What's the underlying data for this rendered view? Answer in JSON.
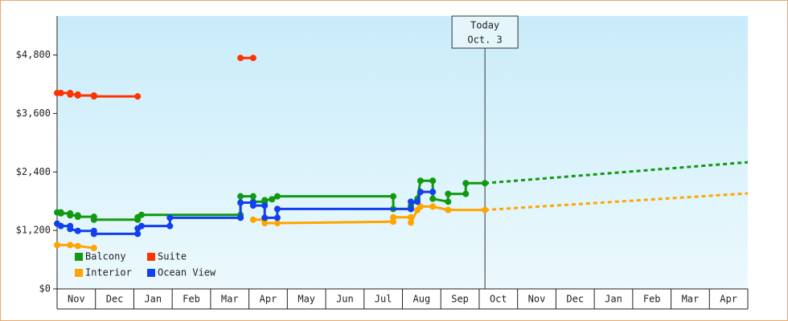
{
  "chart_data": {
    "type": "line",
    "step": true,
    "legend": "lower left",
    "xlim": [
      0,
      18
    ],
    "xticks": [
      {
        "value": 0.5,
        "label": "Nov"
      },
      {
        "value": 1.5,
        "label": "Dec"
      },
      {
        "value": 2.5,
        "label": "Jan"
      },
      {
        "value": 3.5,
        "label": "Feb"
      },
      {
        "value": 4.5,
        "label": "Mar"
      },
      {
        "value": 5.5,
        "label": "Apr"
      },
      {
        "value": 6.5,
        "label": "May"
      },
      {
        "value": 7.5,
        "label": "Jun"
      },
      {
        "value": 8.5,
        "label": "Jul"
      },
      {
        "value": 9.5,
        "label": "Aug"
      },
      {
        "value": 10.5,
        "label": "Sep"
      },
      {
        "value": 11.5,
        "label": "Oct"
      },
      {
        "value": 12.5,
        "label": "Nov"
      },
      {
        "value": 13.5,
        "label": "Dec"
      },
      {
        "value": 14.5,
        "label": "Jan"
      },
      {
        "value": 15.5,
        "label": "Feb"
      },
      {
        "value": 16.5,
        "label": "Mar"
      },
      {
        "value": 17.5,
        "label": "Apr"
      }
    ],
    "ylim": [
      0,
      5600
    ],
    "yticks": [
      {
        "value": 0,
        "label": "$0"
      },
      {
        "value": 1200,
        "label": "$1,200"
      },
      {
        "value": 2400,
        "label": "$2,400"
      },
      {
        "value": 3600,
        "label": "$3,600"
      },
      {
        "value": 4800,
        "label": "$4,800"
      }
    ],
    "annotation": {
      "x": 11.15,
      "lines": [
        "Today",
        "Oct. 3"
      ]
    },
    "series": [
      {
        "name": "Balcony",
        "color": "#119911",
        "x": [
          0,
          0.1,
          0.1,
          0.34,
          0.34,
          0.54,
          0.54,
          0.96,
          0.96,
          2.1,
          2.1,
          2.2,
          4.78,
          4.78,
          5.11,
          5.11,
          5.41,
          5.41,
          5.6,
          5.74,
          8.76,
          8.76,
          9.22,
          9.22,
          9.39,
          9.47,
          9.79,
          9.79,
          10.19,
          10.19,
          10.65,
          10.65,
          11.15
        ],
        "values": [
          1570,
          1570,
          1550,
          1550,
          1510,
          1510,
          1480,
          1480,
          1420,
          1420,
          1470,
          1520,
          1520,
          1900,
          1900,
          1790,
          1790,
          1820,
          1840,
          1900,
          1900,
          1640,
          1640,
          1700,
          1850,
          2220,
          2220,
          1850,
          1790,
          1950,
          1950,
          2170,
          2170
        ]
      },
      {
        "name": "Suite",
        "color": "#ff3300",
        "x": [
          0,
          0.1,
          0.34,
          0.34,
          0.54,
          0.54,
          0.96,
          0.96,
          2.1,
          3.5,
          4.78,
          5.11
        ],
        "values": [
          4020,
          4020,
          4020,
          3990,
          3990,
          3970,
          3970,
          3950,
          3950,
          null,
          4740,
          4740
        ]
      },
      {
        "name": "Interior",
        "color": "#ffa500",
        "x": [
          0,
          0.34,
          0.54,
          0.96,
          3.5,
          5.11,
          5.41,
          5.41,
          5.74,
          8.76,
          8.76,
          9.22,
          9.22,
          9.39,
          9.47,
          9.79,
          10.19,
          11.15
        ],
        "values": [
          900,
          900,
          880,
          840,
          null,
          1420,
          1420,
          1350,
          1350,
          1380,
          1470,
          1470,
          1360,
          1620,
          1690,
          1690,
          1620,
          1620
        ]
      },
      {
        "name": "Ocean View",
        "color": "#1040f0",
        "x": [
          0,
          0.1,
          0.34,
          0.34,
          0.54,
          0.96,
          0.96,
          2.1,
          2.1,
          2.2,
          2.94,
          2.94,
          4.78,
          4.78,
          5.11,
          5.11,
          5.41,
          5.41,
          5.74,
          5.74,
          9.22,
          9.22,
          9.39,
          9.47,
          9.79
        ],
        "values": [
          1340,
          1290,
          1290,
          1230,
          1190,
          1190,
          1130,
          1130,
          1240,
          1290,
          1290,
          1460,
          1460,
          1770,
          1770,
          1710,
          1710,
          1460,
          1460,
          1640,
          1640,
          1790,
          1790,
          1990,
          1990
        ]
      },
      {
        "color": "#119911",
        "style": "dashed",
        "x": [
          11.15,
          18
        ],
        "values": [
          2170,
          2600
        ]
      },
      {
        "color": "#ffa500",
        "style": "dashed",
        "x": [
          11.15,
          18
        ],
        "values": [
          1620,
          1960
        ]
      }
    ]
  }
}
